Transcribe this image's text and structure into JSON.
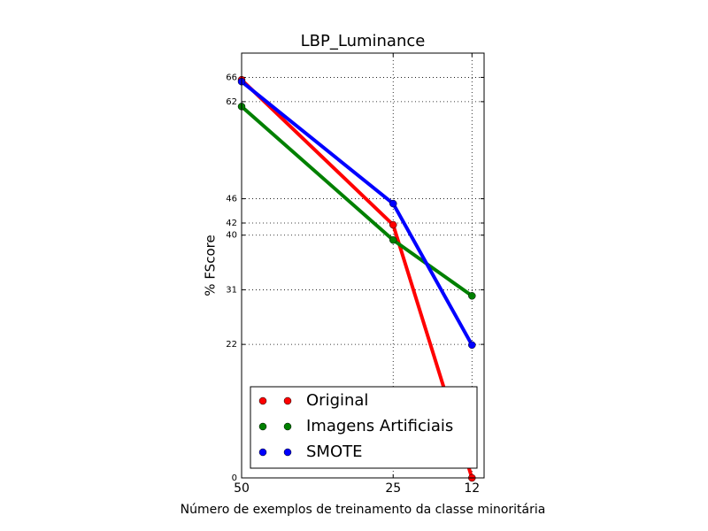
{
  "chart_data": {
    "type": "line",
    "title": "LBP_Luminance",
    "xlabel": "Número de exemplos de treinamento da classe minoritária",
    "ylabel": "% FScore",
    "x": [
      50,
      25,
      12
    ],
    "series": [
      {
        "name": "Original",
        "color": "#ff0000",
        "values": [
          65.6,
          41.7,
          0
        ]
      },
      {
        "name": "Imagens Artificiais",
        "color": "#008000",
        "values": [
          61.2,
          39.2,
          30.0
        ]
      },
      {
        "name": "SMOTE",
        "color": "#0000ff",
        "values": [
          65.3,
          45.2,
          21.9
        ]
      }
    ],
    "xlim": [
      50,
      10
    ],
    "xticks": [
      50,
      25,
      12
    ],
    "ylim": [
      0,
      70
    ],
    "yticks": [
      0,
      22,
      31,
      40,
      42,
      46,
      62,
      66
    ],
    "grid": true,
    "legend": "lower right"
  }
}
